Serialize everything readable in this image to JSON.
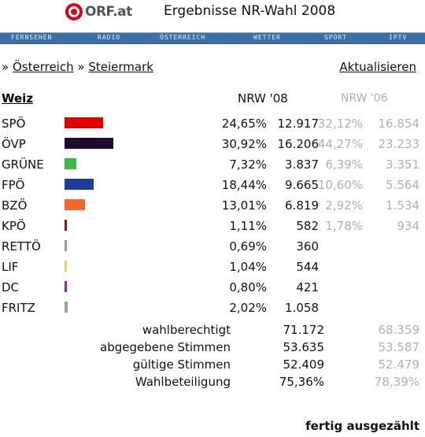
{
  "header": {
    "logo_text": "ORF.at",
    "title": "Ergebnisse NR-Wahl 2008"
  },
  "nav": {
    "items": [
      "FERNSEHEN",
      "RADIO",
      "ÖSTERREICH",
      "WETTER",
      "SPORT",
      "IPTV"
    ]
  },
  "breadcrumb": {
    "prefix": "»",
    "items": [
      "Österreich",
      "Steiermark"
    ]
  },
  "refresh_label": "Aktualisieren",
  "district": "Weiz",
  "columns": {
    "current": "NRW '08",
    "previous": "NRW '06"
  },
  "chart_data": {
    "type": "bar",
    "categories": [
      "SPÖ",
      "ÖVP",
      "GRÜNE",
      "FPÖ",
      "BZÖ",
      "KPÖ",
      "RETTÖ",
      "LIF",
      "DC",
      "FRITZ"
    ],
    "series": [
      {
        "values": [
          24.65,
          30.92,
          7.32,
          18.44,
          13.01,
          1.11,
          0.69,
          1.04,
          0.8,
          2.02
        ]
      }
    ],
    "colors": [
      "#e00000",
      "#200a30",
      "#3cb83c",
      "#1c3f95",
      "#f2682a",
      "#8a1a1a",
      "#9a9a9a",
      "#f0d060",
      "#8a2aa0",
      "#a0a0a0"
    ]
  },
  "parties": [
    {
      "name": "SPÖ",
      "pct": "24,65%",
      "votes": "12.917",
      "pct_prev": "32,12%",
      "votes_prev": "16.854"
    },
    {
      "name": "ÖVP",
      "pct": "30,92%",
      "votes": "16.206",
      "pct_prev": "44,27%",
      "votes_prev": "23.233"
    },
    {
      "name": "GRÜNE",
      "pct": "7,32%",
      "votes": "3.837",
      "pct_prev": "6,39%",
      "votes_prev": "3.351"
    },
    {
      "name": "FPÖ",
      "pct": "18,44%",
      "votes": "9.665",
      "pct_prev": "10,60%",
      "votes_prev": "5.564"
    },
    {
      "name": "BZÖ",
      "pct": "13,01%",
      "votes": "6.819",
      "pct_prev": "2,92%",
      "votes_prev": "1.534"
    },
    {
      "name": "KPÖ",
      "pct": "1,11%",
      "votes": "582",
      "pct_prev": "1,78%",
      "votes_prev": "934"
    },
    {
      "name": "RETTÖ",
      "pct": "0,69%",
      "votes": "360",
      "pct_prev": "",
      "votes_prev": ""
    },
    {
      "name": "LIF",
      "pct": "1,04%",
      "votes": "544",
      "pct_prev": "",
      "votes_prev": ""
    },
    {
      "name": "DC",
      "pct": "0,80%",
      "votes": "421",
      "pct_prev": "",
      "votes_prev": ""
    },
    {
      "name": "FRITZ",
      "pct": "2,02%",
      "votes": "1.058",
      "pct_prev": "",
      "votes_prev": ""
    }
  ],
  "summary": [
    {
      "label": "wahlberechtigt",
      "cur": "71.172",
      "prev": "68.359"
    },
    {
      "label": "abgegebene Stimmen",
      "cur": "53.635",
      "prev": "53.587"
    },
    {
      "label": "gültige Stimmen",
      "cur": "52.409",
      "prev": "52.479"
    },
    {
      "label": "Wahlbeteiligung",
      "cur": "75,36%",
      "prev": "78,39%"
    }
  ],
  "status": "fertig ausgezählt"
}
